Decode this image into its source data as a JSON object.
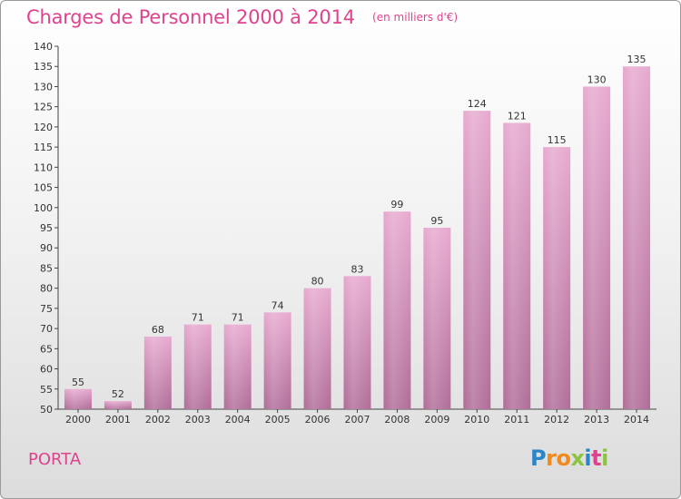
{
  "chart_data": {
    "type": "bar",
    "title": "Charges de Personnel 2000 à 2014",
    "subtitle": "(en milliers d'€)",
    "categories": [
      "2000",
      "2001",
      "2002",
      "2003",
      "2004",
      "2005",
      "2006",
      "2007",
      "2008",
      "2009",
      "2010",
      "2011",
      "2012",
      "2013",
      "2014"
    ],
    "values": [
      55,
      52,
      68,
      71,
      71,
      74,
      80,
      83,
      99,
      95,
      124,
      121,
      115,
      130,
      135
    ],
    "ylim": [
      50,
      140
    ],
    "yticks": [
      50,
      55,
      60,
      65,
      70,
      75,
      80,
      85,
      90,
      95,
      100,
      105,
      110,
      115,
      120,
      125,
      130,
      135,
      140
    ],
    "xlabel": "",
    "ylabel": "",
    "grid": false,
    "bar_color": "#d88fb8"
  },
  "commune": "PORTA",
  "logo": {
    "letters": [
      "P",
      "r",
      "o",
      "x",
      "i",
      "t",
      "i"
    ],
    "colors": [
      "#2b86c8",
      "#f08a1c",
      "#f08a1c",
      "#8bc53f",
      "#2b86c8",
      "#e0438e",
      "#8bc53f"
    ]
  }
}
